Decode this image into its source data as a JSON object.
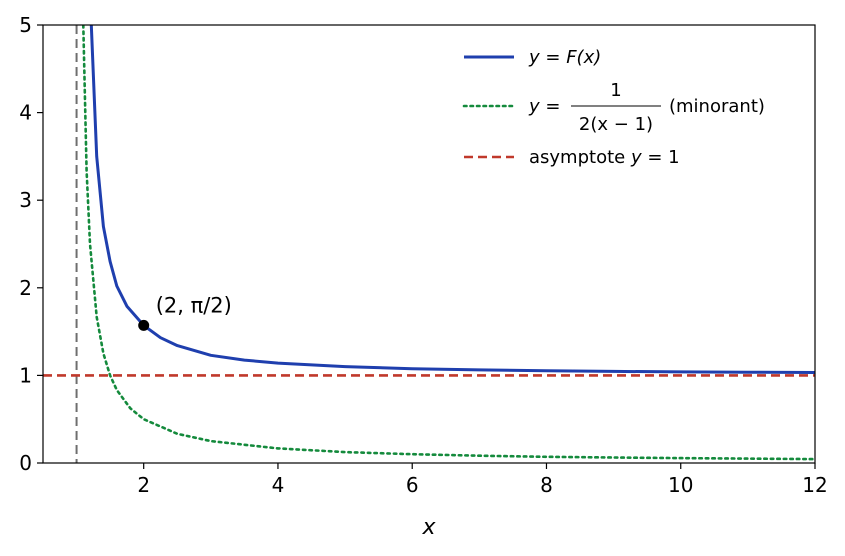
{
  "chart_data": {
    "type": "line",
    "xlabel": "x",
    "xlim": [
      0.5,
      12
    ],
    "ylim": [
      0,
      5
    ],
    "xticks": [
      2,
      4,
      6,
      8,
      10,
      12
    ],
    "yticks": [
      0,
      1,
      2,
      3,
      4,
      5
    ],
    "grid": false,
    "legend_position": "top-right",
    "series": [
      {
        "name": "y = F(x)",
        "style": "solid",
        "color": "#1f3fae",
        "x": [
          1.22,
          1.3,
          1.4,
          1.5,
          1.6,
          1.75,
          2,
          2.25,
          2.5,
          3,
          3.5,
          4,
          5,
          6,
          7,
          8,
          9,
          10,
          11,
          12
        ],
        "y": [
          5.0,
          3.5,
          2.7,
          2.3,
          2.02,
          1.79,
          1.571,
          1.43,
          1.34,
          1.23,
          1.175,
          1.14,
          1.1,
          1.077,
          1.063,
          1.053,
          1.046,
          1.04,
          1.036,
          1.033
        ]
      },
      {
        "name": "y = 1/(2(x−1)) (minorant)",
        "style": "dotted",
        "color": "#148a3c",
        "x": [
          1.1,
          1.15,
          1.2,
          1.3,
          1.4,
          1.5,
          1.6,
          1.8,
          2,
          2.5,
          3,
          4,
          5,
          6,
          7,
          8,
          9,
          10,
          11,
          12
        ],
        "y": [
          5.0,
          3.333,
          2.5,
          1.667,
          1.25,
          1.0,
          0.833,
          0.625,
          0.5,
          0.333,
          0.25,
          0.167,
          0.125,
          0.1,
          0.083,
          0.071,
          0.0625,
          0.056,
          0.05,
          0.045
        ]
      },
      {
        "name": "asymptote y = 1",
        "style": "dashed",
        "color": "#c0392b",
        "x": [
          0.5,
          12
        ],
        "y": [
          1,
          1
        ]
      }
    ],
    "vertical_line": {
      "x": 1,
      "style": "dashed",
      "color": "#6e6e6e"
    },
    "point": {
      "x": 2,
      "y": 1.571,
      "label": "(2,  π/2)",
      "color": "#000000"
    },
    "legend": [
      {
        "series": 0,
        "prefix": "y",
        "eq": " = ",
        "body": "F(x)",
        "suffix": ""
      },
      {
        "series": 1,
        "prefix": "y",
        "eq": " = ",
        "num": "1",
        "den": "2(x − 1)",
        "suffix": "(minorant)"
      },
      {
        "series": 2,
        "prefix": "asymptote ",
        "eq": "",
        "body": "y",
        "suffix": " = 1"
      }
    ]
  }
}
